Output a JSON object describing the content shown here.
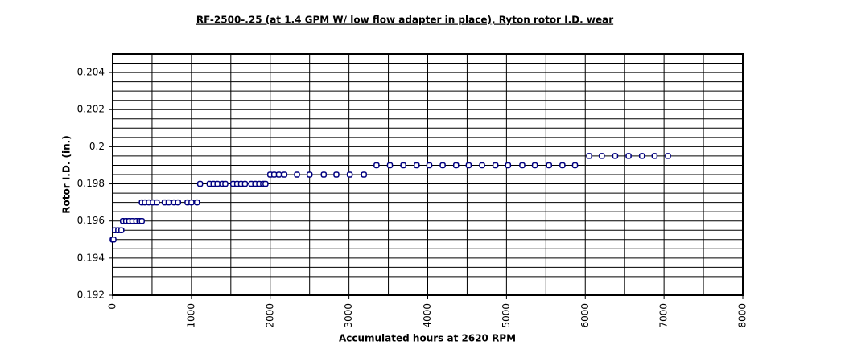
{
  "chart_data": {
    "type": "scatter",
    "title": "RF-2500-.25 (at 1.4 GPM W/ low flow adapter in place),  Ryton rotor I.D. wear",
    "x_label": "Accumulated hours at 2620 RPM",
    "y_label": "Rotor I.D. (in.)",
    "x": [
      0,
      10,
      30,
      70,
      110,
      130,
      170,
      210,
      250,
      300,
      340,
      370,
      370,
      410,
      460,
      510,
      560,
      660,
      710,
      780,
      830,
      950,
      1000,
      1070,
      1110,
      1230,
      1280,
      1330,
      1390,
      1430,
      1530,
      1580,
      1630,
      1680,
      1760,
      1810,
      1860,
      1910,
      1940,
      2000,
      2050,
      2110,
      2180,
      2340,
      2500,
      2680,
      2840,
      3010,
      3190,
      3350,
      3520,
      3690,
      3860,
      4020,
      4190,
      4360,
      4520,
      4690,
      4860,
      5020,
      5200,
      5360,
      5540,
      5710,
      5870,
      6050,
      6210,
      6380,
      6550,
      6720,
      6880,
      7050
    ],
    "values": [
      0.195,
      0.195,
      0.1955,
      0.1955,
      0.1955,
      0.196,
      0.196,
      0.196,
      0.196,
      0.196,
      0.196,
      0.196,
      0.197,
      0.197,
      0.197,
      0.197,
      0.197,
      0.197,
      0.197,
      0.197,
      0.197,
      0.197,
      0.197,
      0.197,
      0.198,
      0.198,
      0.198,
      0.198,
      0.198,
      0.198,
      0.198,
      0.198,
      0.198,
      0.198,
      0.198,
      0.198,
      0.198,
      0.198,
      0.198,
      0.1985,
      0.1985,
      0.1985,
      0.1985,
      0.1985,
      0.1985,
      0.1985,
      0.1985,
      0.1985,
      0.1985,
      0.199,
      0.199,
      0.199,
      0.199,
      0.199,
      0.199,
      0.199,
      0.199,
      0.199,
      0.199,
      0.199,
      0.199,
      0.199,
      0.199,
      0.199,
      0.199,
      0.1995,
      0.1995,
      0.1995,
      0.1995,
      0.1995,
      0.1995,
      0.1995
    ],
    "color": "#000080",
    "xlim": [
      0,
      8000
    ],
    "xticks": [
      0,
      1000,
      2000,
      3000,
      4000,
      5000,
      6000,
      7000,
      8000
    ],
    "ylim": [
      0.192,
      0.205
    ],
    "yticks": [
      0.192,
      0.194,
      0.196,
      0.198,
      0.2,
      0.202,
      0.204
    ],
    "x_gridlines": [
      500,
      1000,
      1500,
      2000,
      2500,
      3000,
      3500,
      4000,
      4500,
      5000,
      5500,
      6000,
      6500,
      7000,
      7500
    ],
    "y_gridlines": [
      0.1925,
      0.193,
      0.1935,
      0.194,
      0.1945,
      0.195,
      0.1955,
      0.196,
      0.1965,
      0.197,
      0.1975,
      0.198,
      0.1985,
      0.199,
      0.1995,
      0.2,
      0.2005,
      0.201,
      0.2015,
      0.202,
      0.2025,
      0.203,
      0.2035,
      0.204,
      0.2045
    ],
    "grid": true
  }
}
